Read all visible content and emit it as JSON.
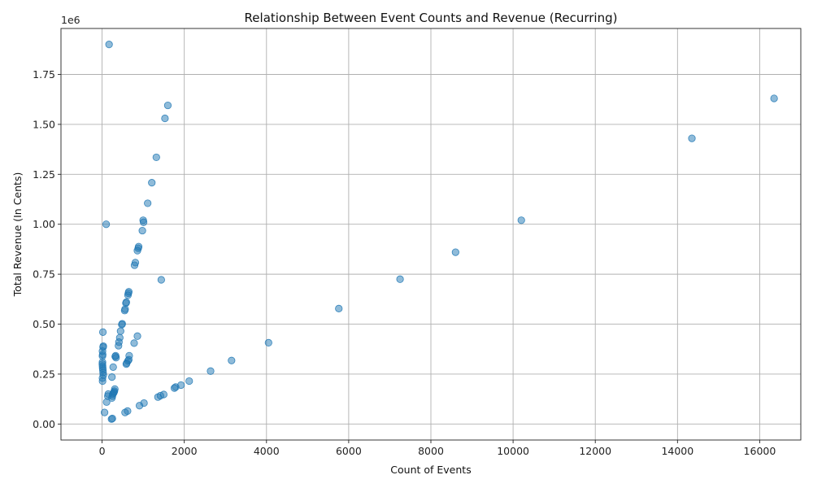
{
  "chart_data": {
    "type": "scatter",
    "title": "Relationship Between Event Counts and Revenue (Recurring)",
    "xlabel": "Count of Events",
    "ylabel": "Total Revenue (In Cents)",
    "y_offset_label": "1e6",
    "xlim": [
      -1000,
      17000
    ],
    "ylim": [
      -80000,
      1980000
    ],
    "grid": true,
    "point_color": "#1f77b4",
    "point_alpha": 0.5,
    "x_ticks": [
      0,
      2000,
      4000,
      6000,
      8000,
      10000,
      12000,
      14000,
      16000
    ],
    "x_tick_labels": [
      "0",
      "2000",
      "4000",
      "6000",
      "8000",
      "10000",
      "12000",
      "14000",
      "16000"
    ],
    "y_ticks": [
      0,
      250000,
      500000,
      750000,
      1000000,
      1250000,
      1500000,
      1750000
    ],
    "y_tick_labels": [
      "0.00",
      "0.25",
      "0.50",
      "0.75",
      "1.00",
      "1.25",
      "1.50",
      "1.75"
    ],
    "points": [
      [
        170,
        1900000
      ],
      [
        1600,
        1595000
      ],
      [
        1530,
        1530000
      ],
      [
        16350,
        1630000
      ],
      [
        14350,
        1430000
      ],
      [
        1320,
        1335000
      ],
      [
        1210,
        1208000
      ],
      [
        1110,
        1105000
      ],
      [
        10200,
        1020000
      ],
      [
        100,
        1000000
      ],
      [
        1000,
        1020000
      ],
      [
        1010,
        1010000
      ],
      [
        980,
        968000
      ],
      [
        890,
        888000
      ],
      [
        880,
        880000
      ],
      [
        860,
        868000
      ],
      [
        8600,
        860000
      ],
      [
        810,
        808000
      ],
      [
        790,
        795000
      ],
      [
        1440,
        722000
      ],
      [
        7250,
        725000
      ],
      [
        650,
        662000
      ],
      [
        640,
        655000
      ],
      [
        630,
        645000
      ],
      [
        590,
        610000
      ],
      [
        580,
        605000
      ],
      [
        560,
        575000
      ],
      [
        550,
        568000
      ],
      [
        5760,
        578000
      ],
      [
        490,
        502000
      ],
      [
        480,
        498000
      ],
      [
        20,
        460000
      ],
      [
        450,
        465000
      ],
      [
        860,
        440000
      ],
      [
        430,
        432000
      ],
      [
        410,
        410000
      ],
      [
        780,
        405000
      ],
      [
        4050,
        407000
      ],
      [
        400,
        392000
      ],
      [
        30,
        390000
      ],
      [
        25,
        385000
      ],
      [
        10,
        365000
      ],
      [
        15,
        348000
      ],
      [
        10,
        340000
      ],
      [
        330,
        342000
      ],
      [
        320,
        338000
      ],
      [
        340,
        332000
      ],
      [
        660,
        342000
      ],
      [
        650,
        322000
      ],
      [
        630,
        316000
      ],
      [
        600,
        305000
      ],
      [
        590,
        300000
      ],
      [
        3150,
        318000
      ],
      [
        10,
        310000
      ],
      [
        8,
        300000
      ],
      [
        12,
        290000
      ],
      [
        15,
        280000
      ],
      [
        20,
        270000
      ],
      [
        25,
        258000
      ],
      [
        30,
        245000
      ],
      [
        10,
        230000
      ],
      [
        12,
        215000
      ],
      [
        270,
        285000
      ],
      [
        2640,
        265000
      ],
      [
        240,
        235000
      ],
      [
        2120,
        215000
      ],
      [
        1920,
        195000
      ],
      [
        1790,
        185000
      ],
      [
        1760,
        180000
      ],
      [
        310,
        175000
      ],
      [
        300,
        165000
      ],
      [
        290,
        160000
      ],
      [
        280,
        155000
      ],
      [
        260,
        150000
      ],
      [
        250,
        140000
      ],
      [
        240,
        130000
      ],
      [
        150,
        150000
      ],
      [
        140,
        140000
      ],
      [
        1500,
        148000
      ],
      [
        1420,
        142000
      ],
      [
        1360,
        135000
      ],
      [
        110,
        110000
      ],
      [
        1020,
        105000
      ],
      [
        910,
        92000
      ],
      [
        620,
        65000
      ],
      [
        560,
        58000
      ],
      [
        60,
        58000
      ],
      [
        250,
        28000
      ],
      [
        230,
        25000
      ]
    ]
  }
}
